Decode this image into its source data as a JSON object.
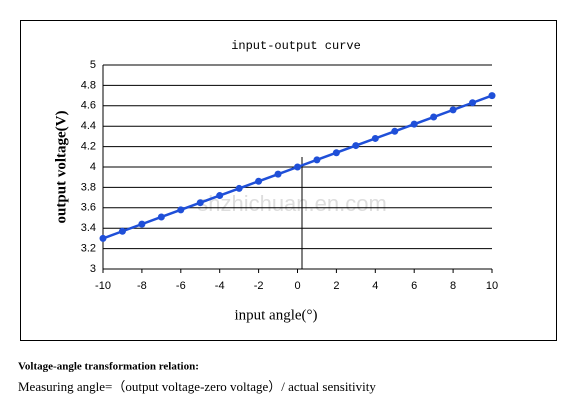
{
  "chart_data": {
    "type": "line",
    "title": "input-output curve",
    "x_label": "input angle(°)",
    "y_label": "output voltage(V)",
    "watermark": "shzhichuan.en.com",
    "x": [
      -10,
      -9,
      -8,
      -7,
      -6,
      -5,
      -4,
      -3,
      -2,
      -1,
      0,
      1,
      2,
      3,
      4,
      5,
      6,
      7,
      8,
      9,
      10
    ],
    "series": [
      {
        "name": "output voltage",
        "color": "#1f4fd8",
        "values": [
          3.3,
          3.37,
          3.44,
          3.51,
          3.58,
          3.65,
          3.72,
          3.79,
          3.86,
          3.93,
          4.0,
          4.07,
          4.14,
          4.21,
          4.28,
          4.35,
          4.42,
          4.49,
          4.56,
          4.63,
          4.7
        ]
      }
    ],
    "xlim": [
      -10,
      10
    ],
    "xticks": [
      -10,
      -8,
      -6,
      -4,
      -2,
      0,
      2,
      4,
      6,
      8,
      10
    ],
    "ylim": [
      3,
      5
    ],
    "yticks": [
      3,
      3.2,
      3.4,
      3.6,
      3.8,
      4,
      4.2,
      4.4,
      4.6,
      4.8,
      5
    ],
    "grid": true
  },
  "notes": {
    "heading": "Voltage-angle transformation relation:",
    "formula": "Measuring angle=（output voltage-zero voltage）/ actual sensitivity"
  }
}
